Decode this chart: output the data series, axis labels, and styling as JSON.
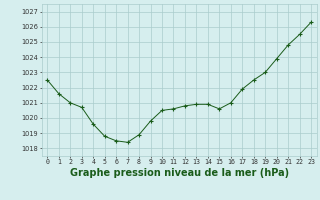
{
  "hours": [
    0,
    1,
    2,
    3,
    4,
    5,
    6,
    7,
    8,
    9,
    10,
    11,
    12,
    13,
    14,
    15,
    16,
    17,
    18,
    19,
    20,
    21,
    22,
    23
  ],
  "pressure": [
    1022.5,
    1021.6,
    1021.0,
    1020.7,
    1019.6,
    1018.8,
    1018.5,
    1018.4,
    1018.9,
    1019.8,
    1020.5,
    1020.6,
    1020.8,
    1020.9,
    1020.9,
    1020.6,
    1021.0,
    1021.9,
    1022.5,
    1023.0,
    1023.9,
    1024.8,
    1025.5,
    1026.3
  ],
  "line_color": "#1a5c1a",
  "marker": "+",
  "bg_color": "#d6eeee",
  "grid_color": "#aacccc",
  "ylabel_ticks": [
    1018,
    1019,
    1020,
    1021,
    1022,
    1023,
    1024,
    1025,
    1026,
    1027
  ],
  "ylim": [
    1017.5,
    1027.5
  ],
  "xlim": [
    -0.5,
    23.5
  ],
  "xlabel": "Graphe pression niveau de la mer (hPa)",
  "tick_fontsize": 4.8,
  "label_fontsize": 7.0
}
